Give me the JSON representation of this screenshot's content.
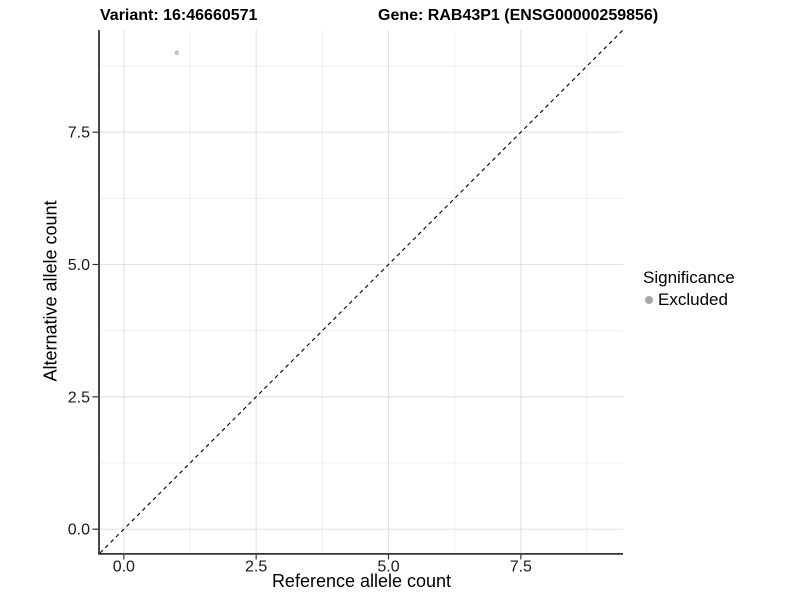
{
  "figure": {
    "background": "#ffffff"
  },
  "chart_data": {
    "type": "scatter",
    "titles": {
      "left": "Variant: 16:46660571",
      "right": "Gene: RAB43P1 (ENSG00000259856)"
    },
    "xlabel": "Reference allele count",
    "ylabel": "Alternative allele count",
    "axis_range": [
      -0.45,
      9.43
    ],
    "major_breaks": [
      0,
      2.5,
      5,
      7.5
    ],
    "minor_breaks": [
      1.25,
      3.75,
      6.25,
      8.75
    ],
    "x_tick_labels": [
      "0.0",
      "2.5",
      "5.0",
      "7.5"
    ],
    "y_tick_labels": [
      "0.0",
      "2.5",
      "5.0",
      "7.5"
    ],
    "points": [
      {
        "x": 1,
        "y": 9,
        "series": "Excluded"
      }
    ],
    "reference_line": {
      "slope": 1,
      "intercept": 0,
      "style": "dashed"
    },
    "legend": {
      "title": "Significance",
      "position": "right",
      "items": [
        {
          "label": "Excluded",
          "color": "#a8a8a8"
        }
      ]
    },
    "style": {
      "point_color": "#c3c3c3",
      "point_radius": 2.3,
      "reference_line_color": "#000000",
      "grid_major_color": "#e2e2e2",
      "grid_minor_color": "#efefef",
      "axis_line_color": "#333333",
      "tick_color": "#333333",
      "tick_label_color": "#1a1a1a"
    }
  }
}
